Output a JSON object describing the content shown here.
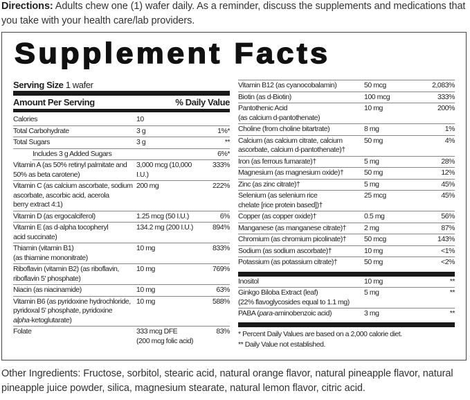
{
  "directions": {
    "label": "Directions:",
    "text": " Adults chew one (1) wafer daily. As a reminder, discuss the supplements and medications that you take with your health care/lab providers."
  },
  "panel": {
    "title": "Supplement Facts",
    "serving_size_label": "Serving Size",
    "serving_size_value": " 1 wafer",
    "amount_header": "Amount Per Serving",
    "dv_header": "% Daily Value",
    "left_rows": [
      {
        "name": [
          "Calories"
        ],
        "amount": [
          "10"
        ],
        "dv": ""
      },
      {
        "name": [
          "Total Carbohydrate"
        ],
        "amount": [
          "3 g"
        ],
        "dv": "1%*"
      },
      {
        "name": [
          "Total Sugars"
        ],
        "amount": [
          "3 g"
        ],
        "dv": "**"
      },
      {
        "name": [
          "Includes 3 g  Added Sugars"
        ],
        "amount": [
          ""
        ],
        "dv": "6%*",
        "indent": true
      },
      {
        "name": [
          "Vitamin A (as 50% retinyl palmitate and",
          "50% as beta carotene)"
        ],
        "amount": [
          "3,000 mcg (10,000 I.U.)"
        ],
        "dv": "333%"
      },
      {
        "name": [
          "Vitamin C (as calcium ascorbate, sodium",
          "ascorbate, ascorbic acid, acerola",
          "berry extract 4:1)"
        ],
        "amount": [
          "200 mg"
        ],
        "dv": "222%"
      },
      {
        "name": [
          "Vitamin D (as ergocalciferol)"
        ],
        "amount": [
          "1.25 mcg (50 I.U.)"
        ],
        "dv": "6%"
      },
      {
        "name": [
          "Vitamin E (as d-alpha tocopheryl",
          "acid succinate)"
        ],
        "amount": [
          "134.2 mg (200 I.U.)"
        ],
        "dv": "894%"
      },
      {
        "name": [
          "Thiamin (vitamin B1)",
          "(as thiamine mononitrate)"
        ],
        "amount": [
          "10 mg"
        ],
        "dv": "833%"
      },
      {
        "name": [
          "Riboflavin (vitamin B2) (as riboflavin,",
          "riboflavin 5' phosphate)"
        ],
        "amount": [
          "10 mg"
        ],
        "dv": "769%"
      },
      {
        "name": [
          "Niacin (as niacinamide)"
        ],
        "amount": [
          "10 mg"
        ],
        "dv": "63%"
      },
      {
        "name": [
          "Vitamin B6 (as pyridoxine hydrochloride,",
          "pyridoxal 5' phosphate, pyridoxine",
          "alpha-ketoglutarate)"
        ],
        "amount": [
          "10 mg"
        ],
        "dv": "588%",
        "italic": "alpha"
      },
      {
        "name": [
          "Folate"
        ],
        "amount": [
          "333 mcg DFE",
          "(200 mcg folic acid)"
        ],
        "dv": "83%",
        "last": true
      }
    ],
    "right_rows": [
      {
        "name": [
          "Vitamin B12 (as cyanocobalamin)"
        ],
        "amount": [
          "50 mcg"
        ],
        "dv": "2,083%"
      },
      {
        "name": [
          "Biotin (as d-Biotin)"
        ],
        "amount": [
          "100 mcg"
        ],
        "dv": "333%"
      },
      {
        "name": [
          "Pantothenic Acid",
          "(as calcium d-pantothenate)"
        ],
        "amount": [
          "10 mg"
        ],
        "dv": "200%"
      },
      {
        "name": [
          "Choline (from choline bitartrate)"
        ],
        "amount": [
          "8 mg"
        ],
        "dv": "1%"
      },
      {
        "name": [
          "Calcium (as calcium citrate, calcium",
          "ascorbate, calcium d-pantothenate)†"
        ],
        "amount": [
          "50 mg"
        ],
        "dv": "4%"
      },
      {
        "name": [
          "Iron (as ferrous fumarate)†"
        ],
        "amount": [
          "5 mg"
        ],
        "dv": "28%"
      },
      {
        "name": [
          "Magnesium (as magnesium oxide)†"
        ],
        "amount": [
          "50 mg"
        ],
        "dv": "12%"
      },
      {
        "name": [
          "Zinc (as zinc citrate)†"
        ],
        "amount": [
          "5 mg"
        ],
        "dv": "45%"
      },
      {
        "name": [
          "Selenium (as selenium rice",
          "chelate [rice protein based])†"
        ],
        "amount": [
          "25 mcg"
        ],
        "dv": "45%"
      },
      {
        "name": [
          "Copper (as copper oxide)†"
        ],
        "amount": [
          "0.5 mg"
        ],
        "dv": "56%"
      },
      {
        "name": [
          "Manganese (as manganese citrate)†"
        ],
        "amount": [
          "2 mg"
        ],
        "dv": "87%"
      },
      {
        "name": [
          "Chromium (as chromium picolinate)†"
        ],
        "amount": [
          "50 mcg"
        ],
        "dv": "143%"
      },
      {
        "name": [
          "Sodium (as sodium ascorbate)†"
        ],
        "amount": [
          "10 mg"
        ],
        "dv": "<1%"
      },
      {
        "name": [
          "Potassium (as potassium citrate)†"
        ],
        "amount": [
          "50 mg"
        ],
        "dv": "<2%",
        "last": true
      }
    ],
    "other_rows": [
      {
        "name": [
          "Inositol"
        ],
        "amount": [
          "10 mg"
        ],
        "dv": "**"
      },
      {
        "name": [
          "Ginkgo Biloba Extract (leaf)",
          "(22% flavoglycosides equal to 1.1 mg)"
        ],
        "amount": [
          " 5 mg"
        ],
        "dv": "**"
      },
      {
        "name": [
          "PABA (para-aminobenzoic acid)"
        ],
        "amount": [
          " 3 mg"
        ],
        "dv": "**",
        "italic": "para",
        "last": true
      }
    ],
    "footnotes": [
      "* Percent Daily Values are based on a 2,000 calorie diet.",
      "** Daily Value not established."
    ]
  },
  "other_ingredients": {
    "text": "Other Ingredients: Fructose, sorbitol, stearic acid, natural orange flavor, natural pineapple flavor, natural pineapple juice powder, silica, magnesium stearate, natural lemon flavor, citric acid."
  }
}
